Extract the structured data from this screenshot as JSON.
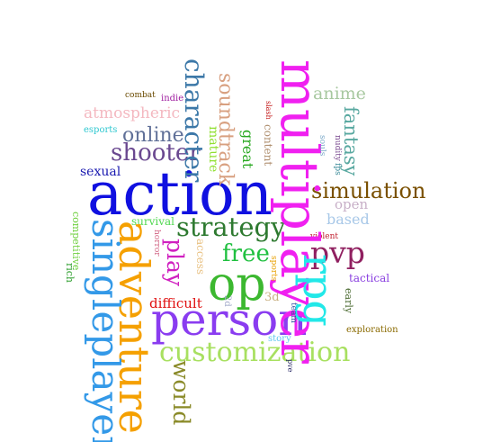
{
  "words": [
    {
      "text": "action",
      "color": "#1010e0"
    },
    {
      "text": "multiplayer",
      "color": "#f020f0"
    },
    {
      "text": "adventure",
      "color": "#f5a000"
    },
    {
      "text": "singleplayer",
      "color": "#3399e8"
    },
    {
      "text": "person",
      "color": "#8a3cf0"
    },
    {
      "text": "op",
      "color": "#3cb830"
    },
    {
      "text": "rpg",
      "color": "#22e8e8"
    },
    {
      "text": "customization",
      "color": "#a8e060"
    },
    {
      "text": "character",
      "color": "#3c78a8"
    },
    {
      "text": "strategy",
      "color": "#2e7a30"
    },
    {
      "text": "simulation",
      "color": "#7a5000"
    },
    {
      "text": "shooter",
      "color": "#6a4890"
    },
    {
      "text": "soundtrack",
      "color": "#d8a080"
    },
    {
      "text": "world",
      "color": "#8a8a28"
    },
    {
      "text": "pvp",
      "color": "#902060"
    },
    {
      "text": "free",
      "color": "#20c040"
    },
    {
      "text": "play",
      "color": "#d020c0"
    },
    {
      "text": "online",
      "color": "#607098"
    },
    {
      "text": "atmospheric",
      "color": "#f4b8c0"
    },
    {
      "text": "anime",
      "color": "#a8c8a0"
    },
    {
      "text": "fantasy",
      "color": "#58a8a0"
    },
    {
      "text": "open",
      "color": "#c8b0c8"
    },
    {
      "text": "based",
      "color": "#a8c8e8"
    },
    {
      "text": "great",
      "color": "#28a820"
    },
    {
      "text": "mature",
      "color": "#90e030"
    },
    {
      "text": "content",
      "color": "#b09070"
    },
    {
      "text": "sexual",
      "color": "#1a1ab0"
    },
    {
      "text": "survival",
      "color": "#50d850"
    },
    {
      "text": "competitive",
      "color": "#70d040"
    },
    {
      "text": "rich",
      "color": "#30a030"
    },
    {
      "text": "horror",
      "color": "#d06080"
    },
    {
      "text": "access",
      "color": "#e8c080"
    },
    {
      "text": "difficult",
      "color": "#e01010"
    },
    {
      "text": "2d",
      "color": "#a0a8c8"
    },
    {
      "text": "3d",
      "color": "#c8b080"
    },
    {
      "text": "sports",
      "color": "#e8a000"
    },
    {
      "text": "team",
      "color": "#3050a0"
    },
    {
      "text": "story",
      "color": "#60c8f0"
    },
    {
      "text": "pve",
      "color": "#202060"
    },
    {
      "text": "tactical",
      "color": "#8a40e0"
    },
    {
      "text": "early",
      "color": "#4a6a30"
    },
    {
      "text": "exploration",
      "color": "#8a6a00"
    },
    {
      "text": "violent",
      "color": "#c02030"
    },
    {
      "text": "nudity",
      "color": "#7a4a90"
    },
    {
      "text": "souls",
      "color": "#7aa8c8"
    },
    {
      "text": "fps",
      "color": "#3a8a98"
    },
    {
      "text": "slash",
      "color": "#c01010"
    },
    {
      "text": "combat",
      "color": "#6a4a00"
    },
    {
      "text": "indie",
      "color": "#a020a0"
    },
    {
      "text": "esports",
      "color": "#30c8d0"
    }
  ]
}
